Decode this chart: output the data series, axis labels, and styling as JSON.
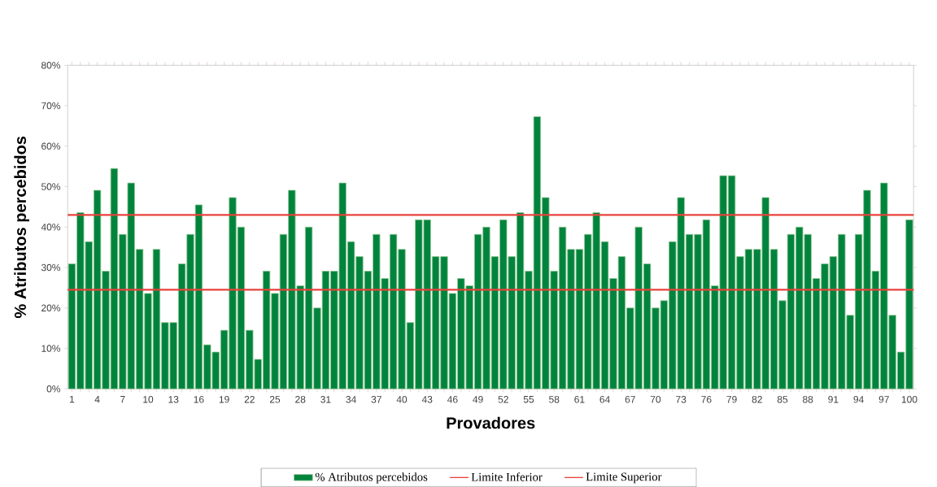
{
  "chart_data": {
    "type": "bar",
    "xlabel": "Provadores",
    "ylabel": "% Atributos percebidos",
    "categories": [
      "1",
      null,
      null,
      "4",
      null,
      null,
      "7",
      null,
      null,
      "10",
      null,
      null,
      "13",
      null,
      null,
      "16",
      null,
      null,
      "19",
      null,
      null,
      "22",
      null,
      null,
      "25",
      null,
      null,
      "28",
      null,
      null,
      "31",
      null,
      null,
      "34",
      null,
      null,
      "37",
      null,
      null,
      "40",
      null,
      null,
      "43",
      null,
      null,
      "46",
      null,
      null,
      "49",
      null,
      null,
      "52",
      null,
      null,
      "55",
      null,
      null,
      "58",
      null,
      null,
      "61",
      null,
      null,
      "64",
      null,
      null,
      "67",
      null,
      null,
      "70",
      null,
      null,
      "73",
      null,
      null,
      "76",
      null,
      null,
      "79",
      null,
      null,
      "82",
      null,
      null,
      "85",
      null,
      null,
      "88",
      null,
      null,
      "91",
      null,
      null,
      "94",
      null,
      null,
      "97",
      null,
      null,
      "100"
    ],
    "series": [
      {
        "name": "% Atributos percebidos",
        "color": "#00843d",
        "values": [
          30.9,
          43.6,
          36.4,
          49.1,
          29.1,
          54.5,
          38.2,
          50.9,
          34.5,
          23.6,
          34.5,
          16.4,
          16.4,
          30.9,
          38.2,
          45.5,
          10.9,
          9.1,
          14.5,
          47.3,
          40.0,
          14.5,
          7.3,
          29.1,
          23.6,
          38.2,
          49.1,
          25.5,
          40.0,
          20.0,
          29.1,
          29.1,
          50.9,
          36.4,
          32.7,
          29.1,
          38.2,
          27.3,
          38.2,
          34.5,
          16.4,
          41.8,
          41.8,
          32.7,
          32.7,
          23.6,
          27.3,
          25.5,
          38.2,
          40.0,
          32.7,
          41.8,
          32.7,
          43.6,
          29.1,
          67.3,
          47.3,
          29.1,
          40.0,
          34.5,
          34.5,
          38.2,
          43.6,
          36.4,
          27.3,
          32.7,
          20.0,
          40.0,
          30.9,
          20.0,
          21.8,
          36.4,
          47.3,
          38.2,
          38.2,
          41.8,
          25.5,
          52.7,
          52.7,
          32.7,
          34.5,
          34.5,
          47.3,
          34.5,
          21.8,
          38.2,
          40.0,
          38.2,
          27.3,
          30.9,
          32.7,
          38.2,
          18.2,
          38.2,
          49.1,
          29.1,
          50.9,
          18.2,
          9.1,
          41.8
        ]
      }
    ],
    "ref_lines": [
      {
        "axis": "y",
        "value": 24.5,
        "label": "Limite Inferior",
        "color": "#e8423b"
      },
      {
        "axis": "y",
        "value": 43.0,
        "label": "Limite Superior",
        "color": "#e8423b"
      }
    ],
    "ylim": [
      0,
      80
    ],
    "yticks": [
      {
        "value": 0,
        "label": "0%"
      },
      {
        "value": 10,
        "label": "10%"
      },
      {
        "value": 20,
        "label": "20%"
      },
      {
        "value": 30,
        "label": "30%"
      },
      {
        "value": 40,
        "label": "40%"
      },
      {
        "value": 50,
        "label": "50%"
      },
      {
        "value": 60,
        "label": "60%"
      },
      {
        "value": 70,
        "label": "70%"
      },
      {
        "value": 80,
        "label": "80%"
      }
    ],
    "legend": "bottom"
  }
}
